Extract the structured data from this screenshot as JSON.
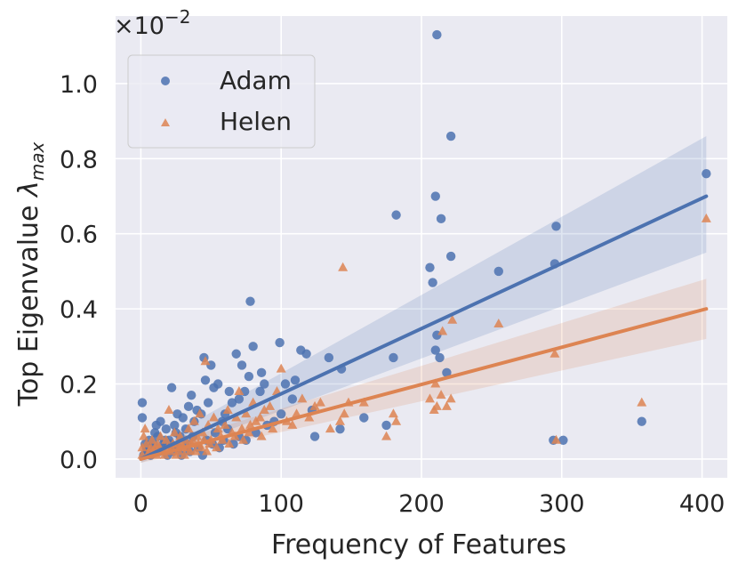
{
  "chart_data": {
    "type": "scatter",
    "xlabel": "Frequency of Features",
    "ylabel_main": "Top Eigenvalue ",
    "ylabel_symbol": "λ",
    "ylabel_sub": "max",
    "y_offset_base": "×10",
    "y_offset_exp": "−2",
    "xlim": [
      -18,
      418
    ],
    "ylim": [
      -0.05,
      1.18
    ],
    "x_ticks": [
      0,
      100,
      200,
      300,
      400
    ],
    "y_ticks": [
      0.0,
      0.2,
      0.4,
      0.6,
      0.8,
      1.0
    ],
    "x_tick_labels": [
      "0",
      "100",
      "200",
      "300",
      "400"
    ],
    "y_tick_labels": [
      "0.0",
      "0.2",
      "0.4",
      "0.6",
      "0.8",
      "1.0"
    ],
    "grid": true,
    "legend_position": "top-left",
    "colors": {
      "Adam": "#4c72b0",
      "Helen": "#dd8452",
      "background": "#eaeaf2",
      "grid": "#ffffff"
    },
    "series": [
      {
        "name": "Adam",
        "marker": "circle",
        "points": [
          [
            211,
            1.13
          ],
          [
            221,
            0.86
          ],
          [
            210,
            0.7
          ],
          [
            214,
            0.64
          ],
          [
            182,
            0.65
          ],
          [
            206,
            0.51
          ],
          [
            208,
            0.47
          ],
          [
            221,
            0.54
          ],
          [
            255,
            0.5
          ],
          [
            296,
            0.62
          ],
          [
            295,
            0.52
          ],
          [
            403,
            0.76
          ],
          [
            211,
            0.33
          ],
          [
            210,
            0.29
          ],
          [
            213,
            0.27
          ],
          [
            218,
            0.23
          ],
          [
            294,
            0.05
          ],
          [
            301,
            0.05
          ],
          [
            357,
            0.1
          ],
          [
            180,
            0.27
          ],
          [
            175,
            0.09
          ],
          [
            159,
            0.11
          ],
          [
            143,
            0.24
          ],
          [
            142,
            0.08
          ],
          [
            134,
            0.27
          ],
          [
            124,
            0.06
          ],
          [
            122,
            0.13
          ],
          [
            118,
            0.28
          ],
          [
            114,
            0.29
          ],
          [
            110,
            0.21
          ],
          [
            108,
            0.16
          ],
          [
            103,
            0.2
          ],
          [
            99,
            0.31
          ],
          [
            88,
            0.2
          ],
          [
            86,
            0.23
          ],
          [
            85,
            0.18
          ],
          [
            80,
            0.3
          ],
          [
            78,
            0.42
          ],
          [
            77,
            0.22
          ],
          [
            74,
            0.18
          ],
          [
            72,
            0.25
          ],
          [
            70,
            0.16
          ],
          [
            68,
            0.28
          ],
          [
            65,
            0.15
          ],
          [
            63,
            0.18
          ],
          [
            60,
            0.12
          ],
          [
            58,
            0.1
          ],
          [
            55,
            0.2
          ],
          [
            52,
            0.19
          ],
          [
            50,
            0.25
          ],
          [
            48,
            0.15
          ],
          [
            46,
            0.21
          ],
          [
            45,
            0.27
          ],
          [
            43,
            0.12
          ],
          [
            40,
            0.13
          ],
          [
            38,
            0.1
          ],
          [
            36,
            0.17
          ],
          [
            34,
            0.14
          ],
          [
            32,
            0.08
          ],
          [
            30,
            0.11
          ],
          [
            28,
            0.06
          ],
          [
            26,
            0.12
          ],
          [
            24,
            0.09
          ],
          [
            22,
            0.19
          ],
          [
            20,
            0.05
          ],
          [
            18,
            0.08
          ],
          [
            16,
            0.04
          ],
          [
            14,
            0.1
          ],
          [
            12,
            0.06
          ],
          [
            10,
            0.07
          ],
          [
            8,
            0.03
          ],
          [
            6,
            0.05
          ],
          [
            4,
            0.03
          ],
          [
            2,
            0.01
          ],
          [
            1,
            0.15
          ],
          [
            1,
            0.11
          ],
          [
            3,
            0.04
          ],
          [
            5,
            0.02
          ],
          [
            7,
            0.01
          ],
          [
            9,
            0.04
          ],
          [
            11,
            0.09
          ],
          [
            13,
            0.02
          ],
          [
            15,
            0.03
          ],
          [
            17,
            0.05
          ],
          [
            19,
            0.01
          ],
          [
            21,
            0.04
          ],
          [
            23,
            0.02
          ],
          [
            25,
            0.07
          ],
          [
            27,
            0.03
          ],
          [
            29,
            0.01
          ],
          [
            33,
            0.04
          ],
          [
            35,
            0.02
          ],
          [
            37,
            0.06
          ],
          [
            41,
            0.03
          ],
          [
            44,
            0.01
          ],
          [
            47,
            0.05
          ],
          [
            51,
            0.04
          ],
          [
            53,
            0.07
          ],
          [
            56,
            0.03
          ],
          [
            59,
            0.05
          ],
          [
            62,
            0.08
          ],
          [
            66,
            0.04
          ],
          [
            70,
            0.06
          ],
          [
            75,
            0.05
          ],
          [
            82,
            0.07
          ],
          [
            90,
            0.09
          ],
          [
            95,
            0.1
          ],
          [
            100,
            0.12
          ]
        ]
      },
      {
        "name": "Helen",
        "marker": "triangle",
        "points": [
          [
            144,
            0.51
          ],
          [
            222,
            0.37
          ],
          [
            215,
            0.34
          ],
          [
            255,
            0.36
          ],
          [
            295,
            0.28
          ],
          [
            403,
            0.64
          ],
          [
            357,
            0.15
          ],
          [
            296,
            0.05
          ],
          [
            210,
            0.2
          ],
          [
            214,
            0.17
          ],
          [
            206,
            0.16
          ],
          [
            211,
            0.14
          ],
          [
            218,
            0.14
          ],
          [
            221,
            0.16
          ],
          [
            209,
            0.13
          ],
          [
            182,
            0.1
          ],
          [
            180,
            0.12
          ],
          [
            175,
            0.06
          ],
          [
            159,
            0.15
          ],
          [
            148,
            0.15
          ],
          [
            145,
            0.12
          ],
          [
            142,
            0.1
          ],
          [
            135,
            0.08
          ],
          [
            128,
            0.15
          ],
          [
            124,
            0.14
          ],
          [
            120,
            0.11
          ],
          [
            115,
            0.16
          ],
          [
            111,
            0.12
          ],
          [
            108,
            0.09
          ],
          [
            104,
            0.1
          ],
          [
            100,
            0.24
          ],
          [
            97,
            0.18
          ],
          [
            92,
            0.14
          ],
          [
            88,
            0.13
          ],
          [
            85,
            0.11
          ],
          [
            82,
            0.1
          ],
          [
            80,
            0.15
          ],
          [
            78,
            0.09
          ],
          [
            75,
            0.12
          ],
          [
            72,
            0.08
          ],
          [
            70,
            0.18
          ],
          [
            68,
            0.11
          ],
          [
            65,
            0.07
          ],
          [
            62,
            0.13
          ],
          [
            60,
            0.09
          ],
          [
            57,
            0.06
          ],
          [
            55,
            0.08
          ],
          [
            52,
            0.11
          ],
          [
            50,
            0.05
          ],
          [
            48,
            0.09
          ],
          [
            46,
            0.26
          ],
          [
            44,
            0.07
          ],
          [
            42,
            0.12
          ],
          [
            40,
            0.06
          ],
          [
            38,
            0.1
          ],
          [
            36,
            0.04
          ],
          [
            34,
            0.08
          ],
          [
            32,
            0.05
          ],
          [
            30,
            0.03
          ],
          [
            28,
            0.06
          ],
          [
            26,
            0.04
          ],
          [
            24,
            0.07
          ],
          [
            22,
            0.03
          ],
          [
            20,
            0.13
          ],
          [
            18,
            0.05
          ],
          [
            16,
            0.02
          ],
          [
            14,
            0.06
          ],
          [
            12,
            0.04
          ],
          [
            10,
            0.03
          ],
          [
            8,
            0.05
          ],
          [
            6,
            0.02
          ],
          [
            4,
            0.04
          ],
          [
            3,
            0.08
          ],
          [
            2,
            0.06
          ],
          [
            1,
            0.03
          ],
          [
            1,
            0.01
          ],
          [
            5,
            0.01
          ],
          [
            7,
            0.03
          ],
          [
            9,
            0.02
          ],
          [
            11,
            0.01
          ],
          [
            13,
            0.03
          ],
          [
            15,
            0.02
          ],
          [
            17,
            0.01
          ],
          [
            19,
            0.03
          ],
          [
            21,
            0.02
          ],
          [
            23,
            0.04
          ],
          [
            25,
            0.01
          ],
          [
            27,
            0.02
          ],
          [
            29,
            0.04
          ],
          [
            31,
            0.01
          ],
          [
            33,
            0.03
          ],
          [
            35,
            0.02
          ],
          [
            37,
            0.05
          ],
          [
            39,
            0.02
          ],
          [
            41,
            0.04
          ],
          [
            43,
            0.03
          ],
          [
            45,
            0.05
          ],
          [
            47,
            0.02
          ],
          [
            49,
            0.04
          ],
          [
            54,
            0.03
          ],
          [
            58,
            0.05
          ],
          [
            63,
            0.04
          ],
          [
            67,
            0.06
          ],
          [
            73,
            0.05
          ],
          [
            77,
            0.07
          ],
          [
            86,
            0.06
          ],
          [
            94,
            0.08
          ]
        ]
      }
    ],
    "regression": [
      {
        "name": "Adam",
        "x": [
          0,
          403
        ],
        "y": [
          0.0,
          0.7
        ],
        "ci_lower": [
          -0.01,
          0.55
        ],
        "ci_upper": [
          0.02,
          0.86
        ]
      },
      {
        "name": "Helen",
        "x": [
          0,
          403
        ],
        "y": [
          0.0,
          0.4
        ],
        "ci_lower": [
          -0.01,
          0.32
        ],
        "ci_upper": [
          0.02,
          0.48
        ]
      }
    ]
  }
}
